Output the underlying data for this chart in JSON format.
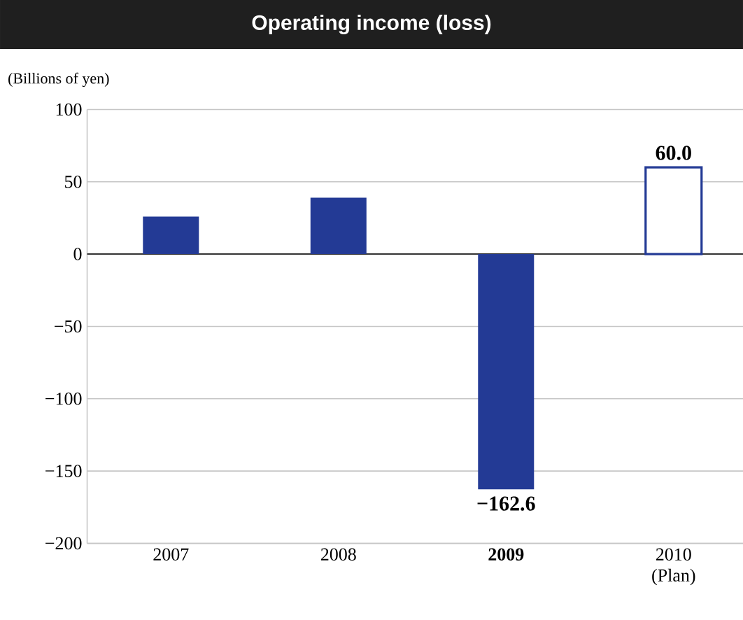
{
  "chart_data": {
    "type": "bar",
    "title": "Operating income (loss)",
    "ylabel": "(Billions of yen)",
    "categories": [
      "2007",
      "2008",
      "**2009**",
      "2010 (Plan)"
    ],
    "stacked": true,
    "grid": "y",
    "series": [
      {
        "color": "#233a95",
        "values": [
          26,
          39,
          -162.6,
          null
        ],
        "value_labels": [
          null,
          null,
          "−162.6",
          null
        ]
      },
      {
        "color": "#233a95",
        "values": [
          null,
          null,
          null,
          60.0
        ],
        "value_labels": [
          null,
          null,
          null,
          "60.0"
        ]
      }
    ],
    "ylim": [
      -200,
      100
    ],
    "yticks": [
      {
        "value": -200,
        "label": "−200"
      },
      {
        "value": -150,
        "label": "−150"
      },
      {
        "value": -100,
        "label": "−100"
      },
      {
        "value": -50,
        "label": "−50"
      },
      0,
      50,
      100
    ]
  }
}
